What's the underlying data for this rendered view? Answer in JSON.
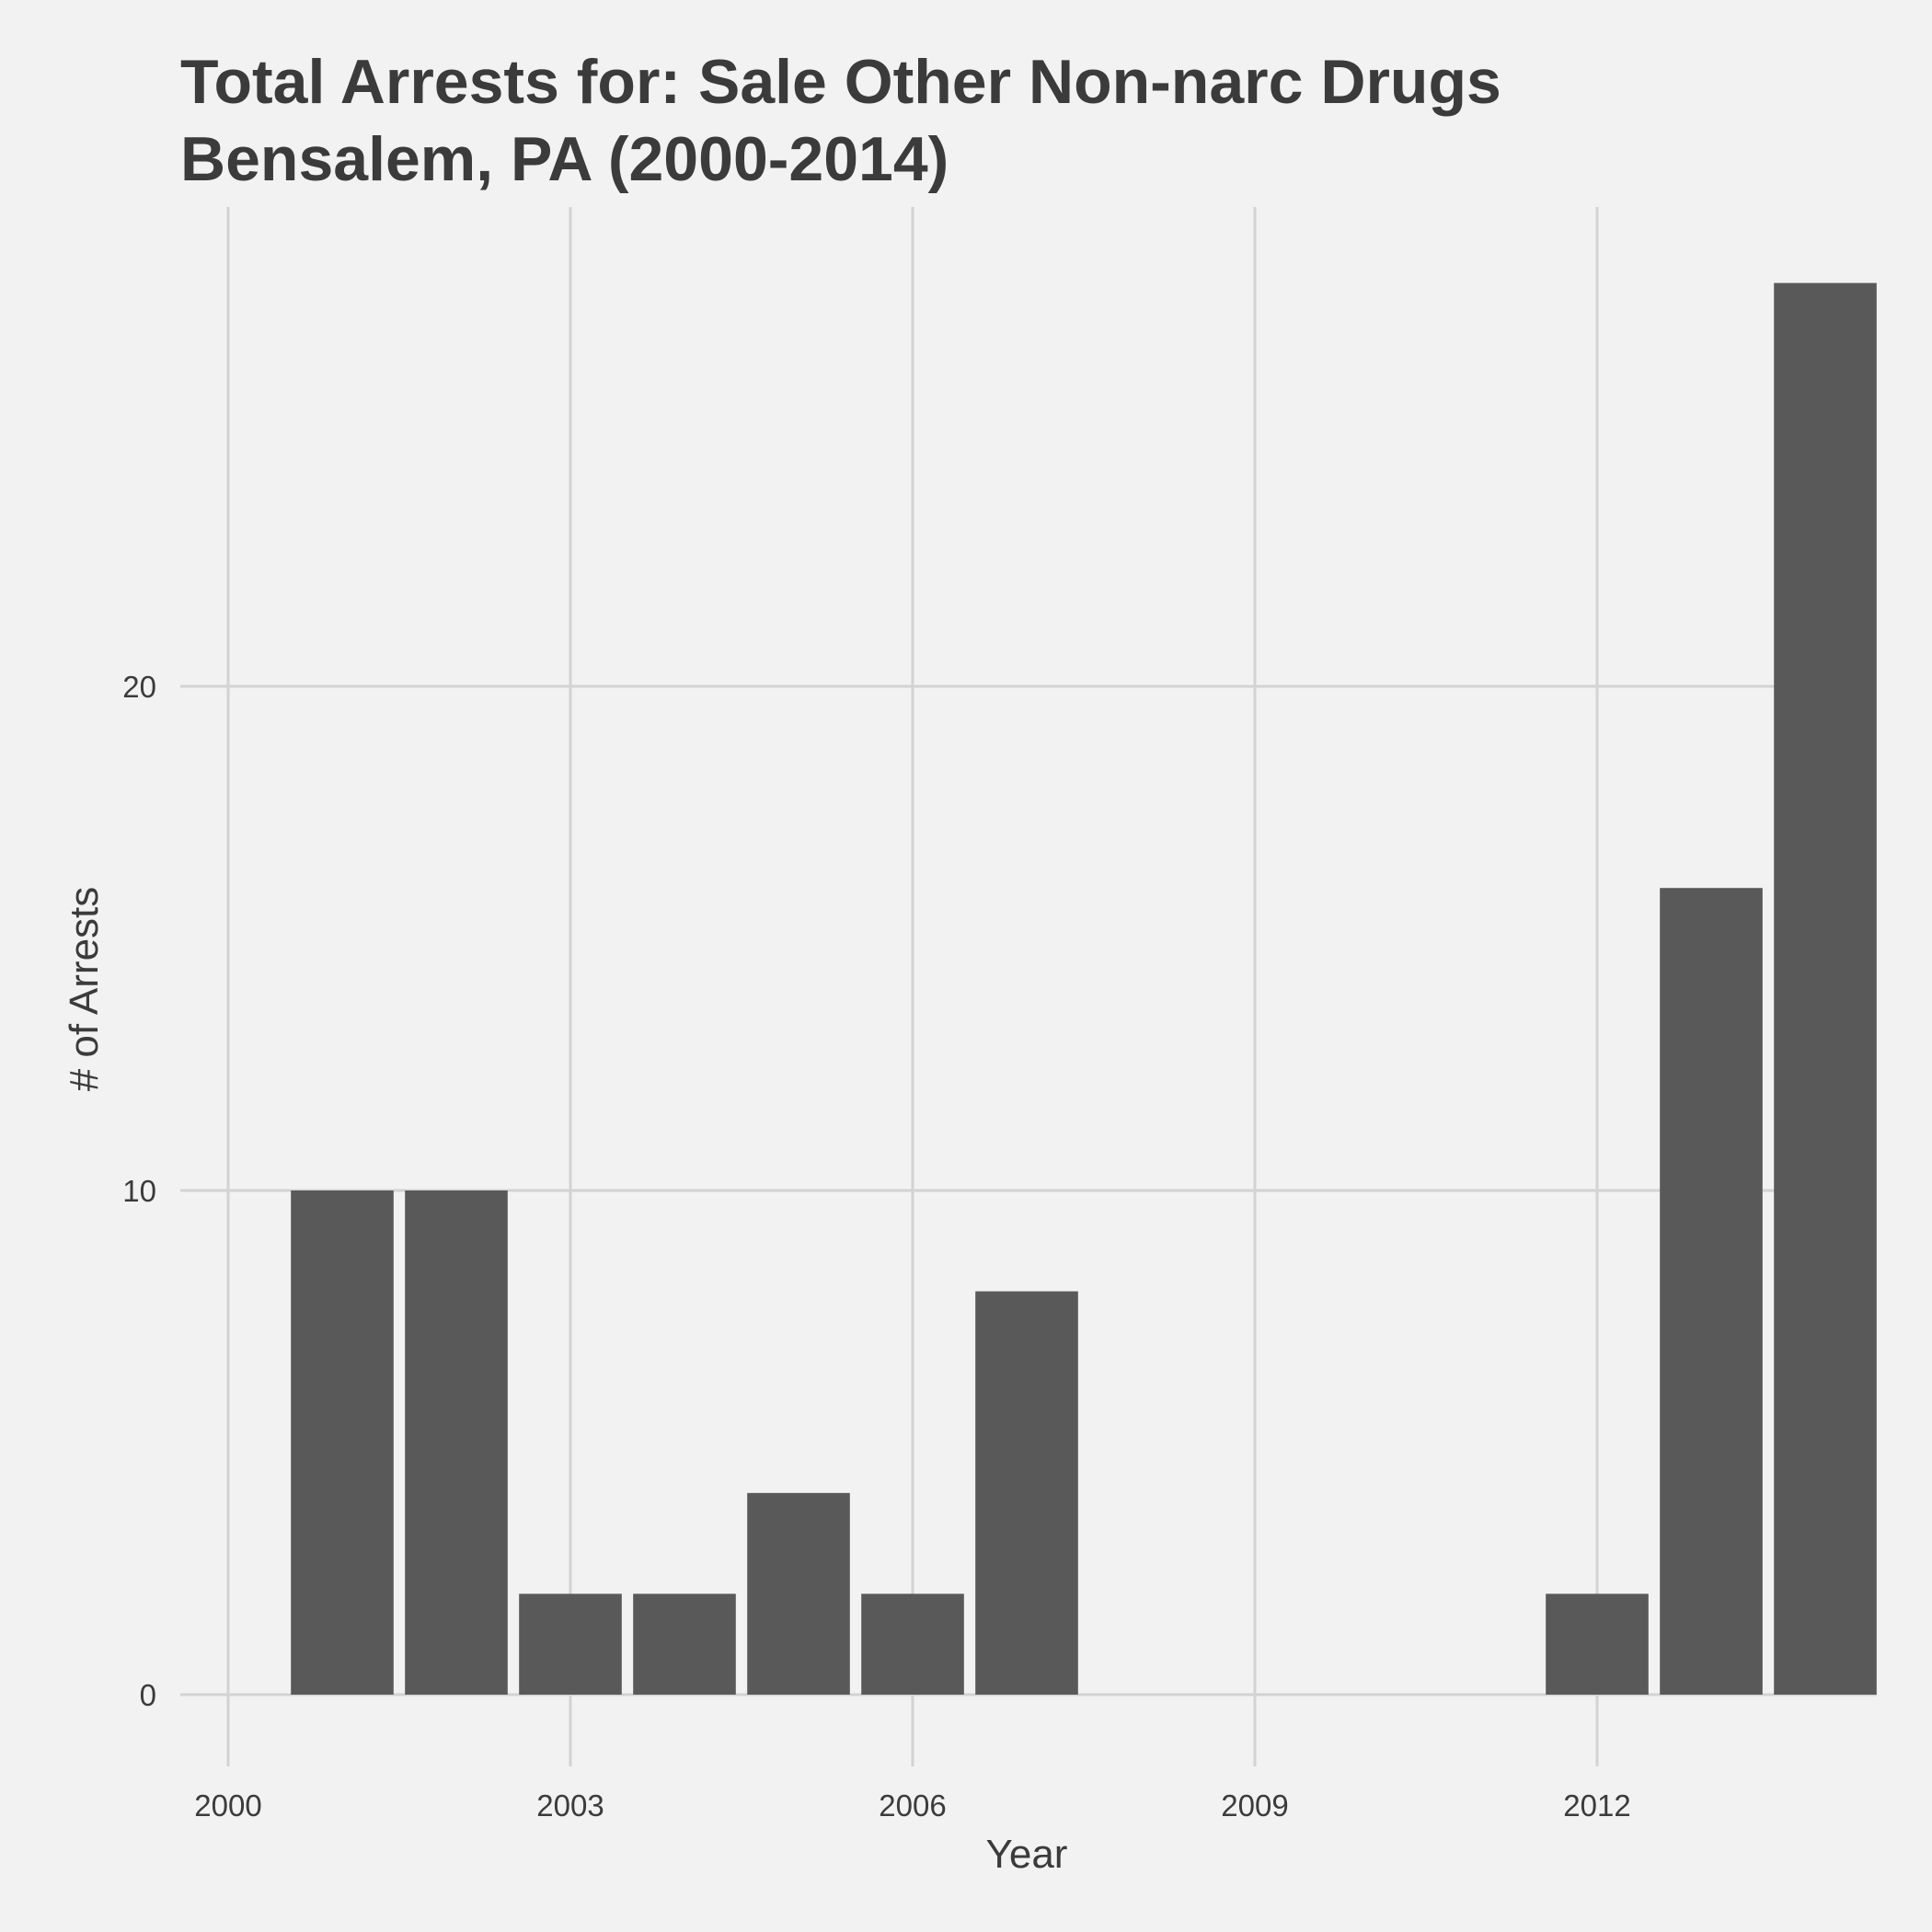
{
  "chart_data": {
    "type": "bar",
    "title": "Total Arrests for: Sale Other Non-narc Drugs",
    "subtitle": "Bensalem, PA (2000-2014)",
    "xlabel": "Year",
    "ylabel": "# of Arrests",
    "x": [
      2001,
      2002,
      2003,
      2004,
      2005,
      2006,
      2007,
      2012,
      2013,
      2014
    ],
    "values": [
      10,
      10,
      2,
      2,
      4,
      2,
      8,
      2,
      16,
      28
    ],
    "x_ticks": [
      2000,
      2003,
      2006,
      2009,
      2012
    ],
    "y_ticks": [
      0,
      10,
      20
    ],
    "xlim": [
      2000,
      2014
    ],
    "ylim": [
      0,
      28
    ],
    "grid": true,
    "legend": "none",
    "bar_color": "#595959",
    "background_color": "#f2f2f2",
    "grid_color": "#d3d3d3",
    "text_color": "#3b3b3b"
  }
}
